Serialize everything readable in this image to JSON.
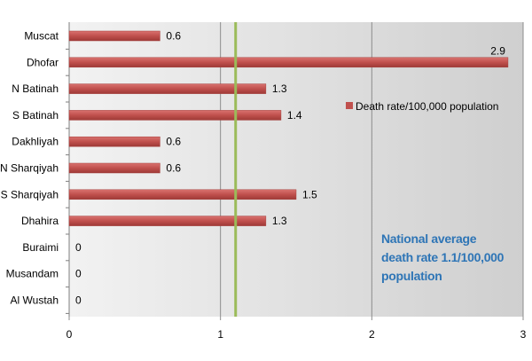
{
  "chart_data": {
    "type": "bar",
    "orientation": "horizontal",
    "categories": [
      "Muscat",
      "Dhofar",
      "N Batinah",
      "S Batinah",
      "Dakhliyah",
      "N Sharqiyah",
      "S Sharqiyah",
      "Dhahira",
      "Buraimi",
      "Musandam",
      "Al Wustah"
    ],
    "series": [
      {
        "name": "Death rate/100,000 population",
        "values": [
          0.6,
          2.9,
          1.3,
          1.4,
          0.6,
          0.6,
          1.5,
          1.3,
          0,
          0,
          0
        ],
        "labels": [
          "0.6",
          "2.9",
          "1.3",
          "1.4",
          "0.6",
          "0.6",
          "1.5",
          "1.3",
          "0",
          "0",
          "0"
        ]
      }
    ],
    "xlim": [
      0,
      3
    ],
    "xticks": [
      "0",
      "1",
      "2",
      "3"
    ],
    "reference_line": {
      "value": 1.1
    },
    "annotation": [
      "National average",
      "death rate 1.1/100,000",
      "population"
    ],
    "legend": "right",
    "grid": true,
    "colors": {
      "bar": "#c0504d",
      "reference": "#9bbb59",
      "plot_bg": "#dcdcdc",
      "annotation": "#2e75b6"
    }
  }
}
